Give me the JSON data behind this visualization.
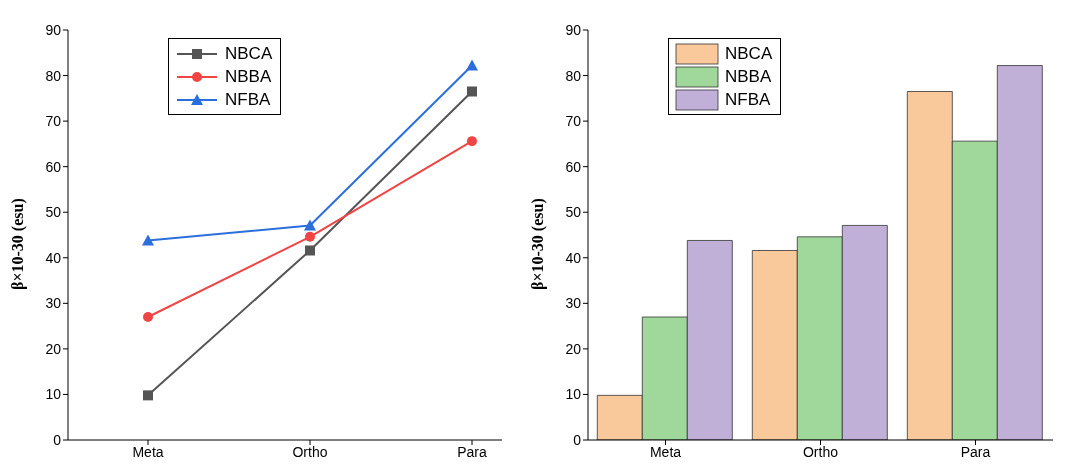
{
  "chart_data": [
    {
      "type": "line",
      "ylabel": "β×10-30 (esu)",
      "categories": [
        "Meta",
        "Ortho",
        "Para"
      ],
      "ylim": [
        0,
        90
      ],
      "yticks": [
        0,
        10,
        20,
        30,
        40,
        50,
        60,
        70,
        80,
        90
      ],
      "legend": "top left",
      "grid": false,
      "series": [
        {
          "name": "NBCA",
          "color": "#555555",
          "marker": "square",
          "values": [
            9.8,
            41.6,
            76.5
          ]
        },
        {
          "name": "NBBA",
          "color": "#f04545",
          "marker": "circle",
          "values": [
            27.0,
            44.6,
            65.6
          ]
        },
        {
          "name": "NFBA",
          "color": "#2b6fdc",
          "marker": "triangle",
          "values": [
            43.8,
            47.1,
            82.2
          ]
        }
      ]
    },
    {
      "type": "bar",
      "ylabel": "β×10-30 (esu)",
      "categories": [
        "Meta",
        "Ortho",
        "Para"
      ],
      "ylim": [
        0,
        90
      ],
      "yticks": [
        0,
        10,
        20,
        30,
        40,
        50,
        60,
        70,
        80,
        90
      ],
      "legend": "top left",
      "grid": false,
      "series": [
        {
          "name": "NBCA",
          "color": "#f9c89b",
          "values": [
            9.8,
            41.6,
            76.5
          ]
        },
        {
          "name": "NBBA",
          "color": "#9fd89a",
          "values": [
            27.0,
            44.6,
            65.6
          ]
        },
        {
          "name": "NFBA",
          "color": "#c0afd6",
          "values": [
            43.8,
            47.1,
            82.2
          ]
        }
      ]
    }
  ]
}
